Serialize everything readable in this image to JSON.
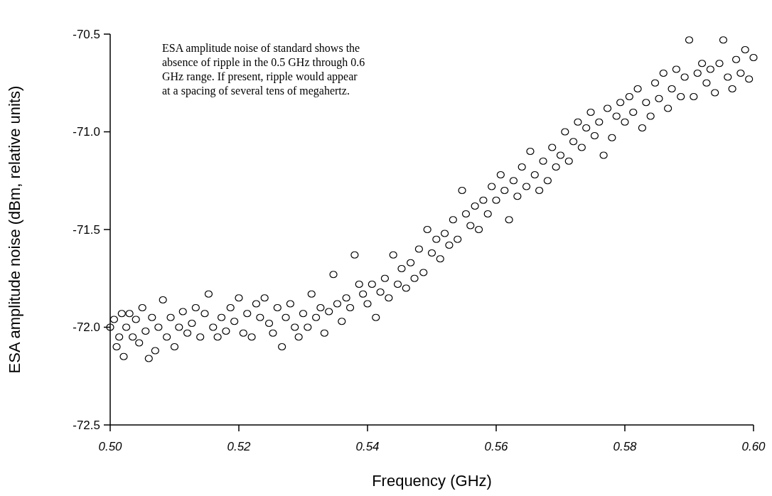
{
  "chart_data": {
    "type": "scatter",
    "xlabel": "Frequency (GHz)",
    "ylabel": "ESA amplitude noise (dBm, relative units)",
    "annotations": [
      "ESA amplitude noise of standard shows the absence of ripple in the 0.5 GHz through 0.6 GHz range. If present, ripple would appear at a spacing of several tens of megahertz."
    ],
    "xlim": [
      0.5,
      0.6
    ],
    "ylim": [
      -72.5,
      -70.5
    ],
    "xticks": [
      {
        "value": 0.5,
        "label": "0.50"
      },
      {
        "value": 0.52,
        "label": "0.52"
      },
      {
        "value": 0.54,
        "label": "0.54"
      },
      {
        "value": 0.56,
        "label": "0.56"
      },
      {
        "value": 0.58,
        "label": "0.58"
      },
      {
        "value": 0.6,
        "label": "0.60"
      }
    ],
    "yticks": [
      {
        "value": -72.5,
        "label": "-72.5"
      },
      {
        "value": -72,
        "label": "-72.0"
      },
      {
        "value": -71.5,
        "label": "-71.5"
      },
      {
        "value": -71,
        "label": "-71.0"
      },
      {
        "value": -70.5,
        "label": "-70.5"
      }
    ],
    "grid": false,
    "marker": "circle",
    "series": [
      {
        "color": "#000000",
        "x": [
          0.5,
          0.5006,
          0.501,
          0.5014,
          0.5018,
          0.5021,
          0.5025,
          0.503,
          0.5035,
          0.504,
          0.5045,
          0.505,
          0.5055,
          0.506,
          0.5065,
          0.507,
          0.5075,
          0.5082,
          0.5088,
          0.5094,
          0.51,
          0.5107,
          0.5113,
          0.512,
          0.5127,
          0.5133,
          0.514,
          0.5147,
          0.5153,
          0.516,
          0.5167,
          0.5173,
          0.518,
          0.5187,
          0.5193,
          0.52,
          0.5207,
          0.5213,
          0.522,
          0.5227,
          0.5233,
          0.524,
          0.5247,
          0.5253,
          0.526,
          0.5267,
          0.5273,
          0.528,
          0.5287,
          0.5293,
          0.53,
          0.5307,
          0.5313,
          0.532,
          0.5327,
          0.5333,
          0.534,
          0.5347,
          0.5353,
          0.536,
          0.5367,
          0.5373,
          0.538,
          0.5387,
          0.5393,
          0.54,
          0.5407,
          0.5413,
          0.542,
          0.5427,
          0.5433,
          0.544,
          0.5447,
          0.5453,
          0.546,
          0.5467,
          0.5473,
          0.548,
          0.5487,
          0.5493,
          0.55,
          0.5507,
          0.5513,
          0.552,
          0.5527,
          0.5533,
          0.554,
          0.5547,
          0.5553,
          0.556,
          0.5567,
          0.5573,
          0.558,
          0.5587,
          0.5593,
          0.56,
          0.5607,
          0.5613,
          0.562,
          0.5627,
          0.5633,
          0.564,
          0.5647,
          0.5653,
          0.566,
          0.5667,
          0.5673,
          0.568,
          0.5687,
          0.5693,
          0.57,
          0.5707,
          0.5713,
          0.572,
          0.5727,
          0.5733,
          0.574,
          0.5747,
          0.5753,
          0.576,
          0.5767,
          0.5773,
          0.578,
          0.5787,
          0.5793,
          0.58,
          0.5807,
          0.5813,
          0.582,
          0.5827,
          0.5833,
          0.584,
          0.5847,
          0.5853,
          0.586,
          0.5867,
          0.5873,
          0.588,
          0.5887,
          0.5893,
          0.59,
          0.5907,
          0.5913,
          0.592,
          0.5927,
          0.5933,
          0.594,
          0.5947,
          0.5953,
          0.596,
          0.5967,
          0.5973,
          0.598,
          0.5987,
          0.5993,
          0.6
        ],
        "values": [
          -72,
          -71.96,
          -72.1,
          -72.05,
          -71.93,
          -72.15,
          -72,
          -71.93,
          -72.05,
          -71.96,
          -72.08,
          -71.9,
          -72.02,
          -72.16,
          -71.95,
          -72.12,
          -72,
          -71.86,
          -72.05,
          -71.95,
          -72.1,
          -72,
          -71.92,
          -72.03,
          -71.98,
          -71.9,
          -72.05,
          -71.93,
          -71.83,
          -72,
          -72.05,
          -71.95,
          -72.02,
          -71.9,
          -71.97,
          -71.85,
          -72.03,
          -71.93,
          -72.05,
          -71.88,
          -71.95,
          -71.85,
          -71.98,
          -72.03,
          -71.9,
          -72.1,
          -71.95,
          -71.88,
          -72,
          -72.05,
          -71.93,
          -72,
          -71.83,
          -71.95,
          -71.9,
          -72.03,
          -71.92,
          -71.73,
          -71.88,
          -71.97,
          -71.85,
          -71.9,
          -71.63,
          -71.78,
          -71.83,
          -71.88,
          -71.78,
          -71.95,
          -71.82,
          -71.75,
          -71.85,
          -71.63,
          -71.78,
          -71.7,
          -71.8,
          -71.67,
          -71.75,
          -71.6,
          -71.72,
          -71.5,
          -71.62,
          -71.55,
          -71.65,
          -71.52,
          -71.58,
          -71.45,
          -71.55,
          -71.3,
          -71.42,
          -71.48,
          -71.38,
          -71.5,
          -71.35,
          -71.42,
          -71.28,
          -71.35,
          -71.22,
          -71.3,
          -71.45,
          -71.25,
          -71.33,
          -71.18,
          -71.28,
          -71.1,
          -71.22,
          -71.3,
          -71.15,
          -71.25,
          -71.08,
          -71.18,
          -71.12,
          -71,
          -71.15,
          -71.05,
          -70.95,
          -71.08,
          -70.98,
          -70.9,
          -71.02,
          -70.95,
          -71.12,
          -70.88,
          -71.03,
          -70.92,
          -70.85,
          -70.95,
          -70.82,
          -70.9,
          -70.78,
          -70.98,
          -70.85,
          -70.92,
          -70.75,
          -70.83,
          -70.7,
          -70.88,
          -70.78,
          -70.68,
          -70.82,
          -70.72,
          -70.53,
          -70.82,
          -70.7,
          -70.65,
          -70.75,
          -70.68,
          -70.8,
          -70.65,
          -70.53,
          -70.72,
          -70.78,
          -70.63,
          -70.7,
          -70.58,
          -70.73,
          -70.62
        ]
      }
    ]
  }
}
